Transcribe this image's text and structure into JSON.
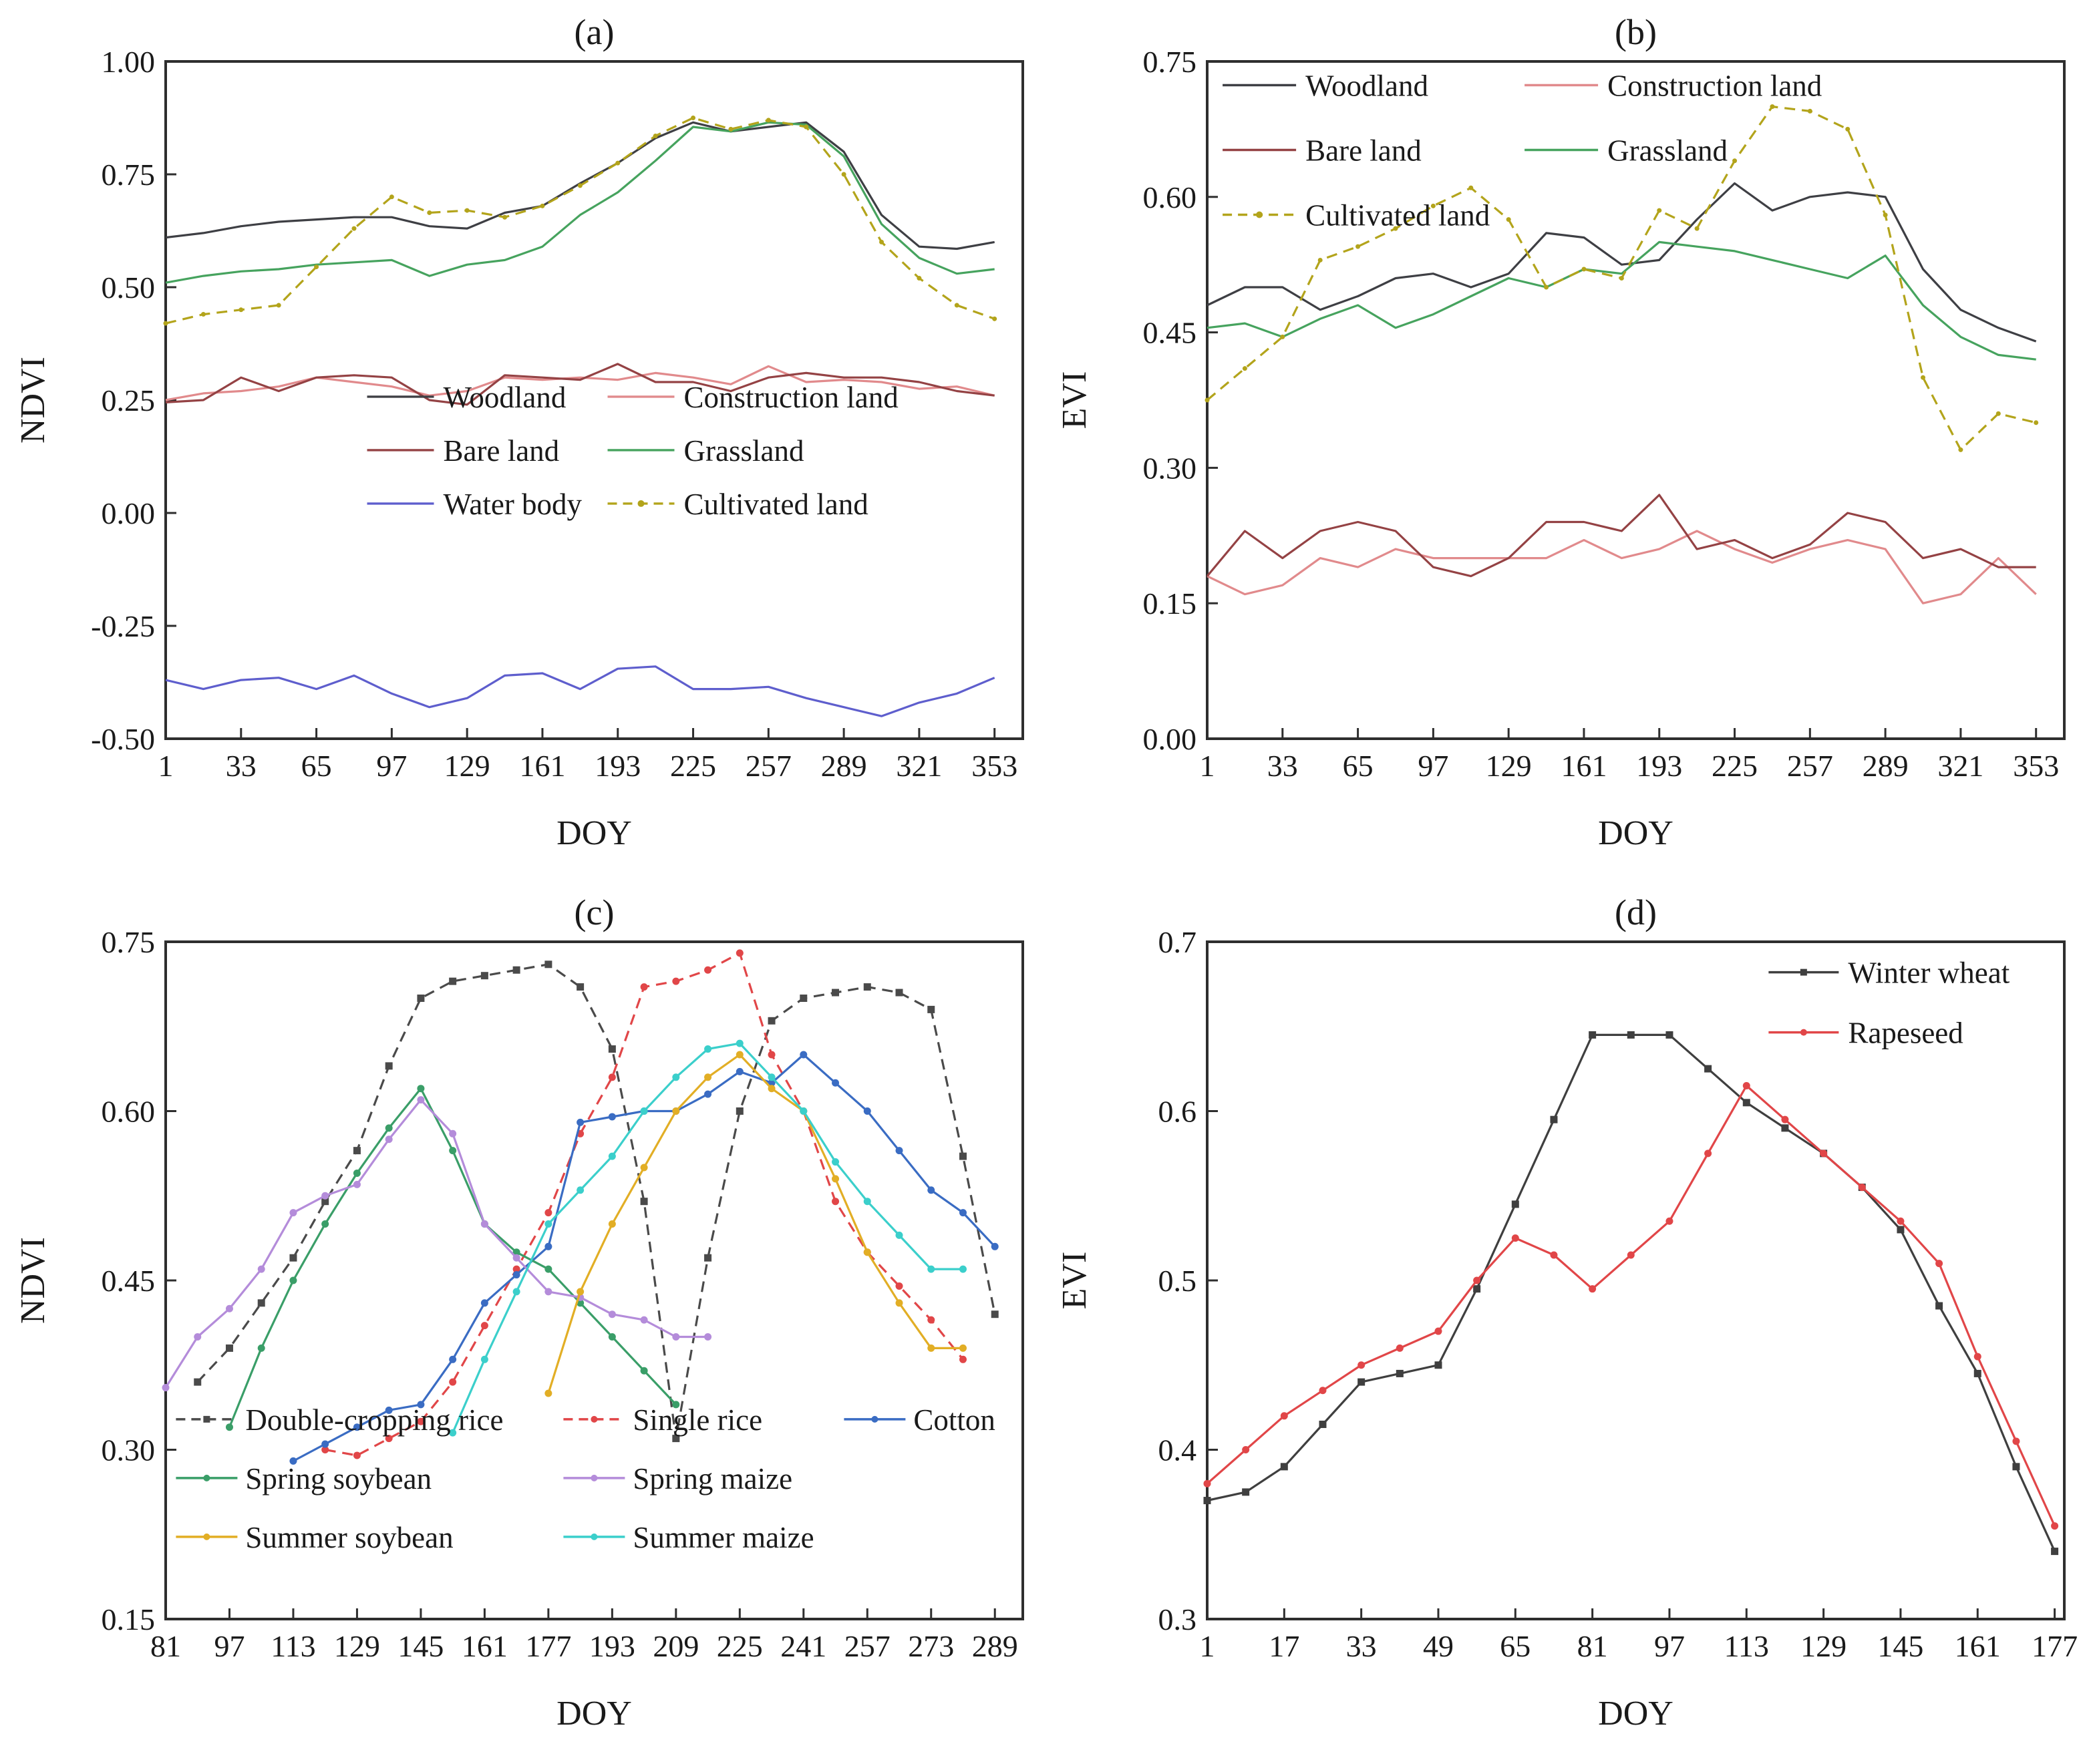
{
  "figure": {
    "background": "#ffffff",
    "axis_color": "#2e2e2e"
  },
  "chart_data": [
    {
      "type": "line",
      "title": "(a)",
      "xlabel": "DOY",
      "ylabel": "NDVI",
      "xlim": [
        1,
        365
      ],
      "ylim": [
        -0.5,
        1.0
      ],
      "grid": false,
      "legend_position": "inside-center-lower",
      "xtick_values": [
        1,
        33,
        65,
        97,
        129,
        161,
        193,
        225,
        257,
        289,
        321,
        353
      ],
      "xtick_labels": [
        "1",
        "33",
        "65",
        "97",
        "129",
        "161",
        "193",
        "225",
        "257",
        "289",
        "321",
        "353"
      ],
      "ytick_values": [
        1.0,
        0.75,
        0.5,
        0.25,
        0.0,
        -0.25,
        -0.5
      ],
      "ytick_labels": [
        "1.00",
        "0.75",
        "0.50",
        "0.25",
        "0.00",
        "-0.25",
        "-0.50"
      ],
      "x_start": 1,
      "x_step": 16,
      "series": [
        {
          "name": "Woodland",
          "color": "#3e3f44",
          "dash": null,
          "marker": null,
          "y": [
            0.61,
            0.62,
            0.635,
            0.645,
            0.65,
            0.655,
            0.655,
            0.635,
            0.63,
            0.665,
            0.68,
            0.73,
            0.775,
            0.83,
            0.865,
            0.845,
            0.855,
            0.865,
            0.8,
            0.66,
            0.59,
            0.585,
            0.6
          ]
        },
        {
          "name": "Construction land",
          "color": "#e18a8c",
          "dash": null,
          "marker": null,
          "y": [
            0.25,
            0.265,
            0.27,
            0.28,
            0.3,
            0.29,
            0.28,
            0.26,
            0.27,
            0.3,
            0.295,
            0.3,
            0.295,
            0.31,
            0.3,
            0.285,
            0.325,
            0.29,
            0.295,
            0.29,
            0.275,
            0.28,
            0.26
          ]
        },
        {
          "name": "Bare land",
          "color": "#944244",
          "dash": null,
          "marker": null,
          "y": [
            0.245,
            0.25,
            0.3,
            0.27,
            0.3,
            0.305,
            0.3,
            0.25,
            0.24,
            0.305,
            0.3,
            0.295,
            0.33,
            0.29,
            0.29,
            0.27,
            0.3,
            0.31,
            0.3,
            0.3,
            0.29,
            0.27,
            0.26
          ]
        },
        {
          "name": "Grassland",
          "color": "#46a35e",
          "dash": null,
          "marker": null,
          "y": [
            0.51,
            0.525,
            0.535,
            0.54,
            0.55,
            0.555,
            0.56,
            0.525,
            0.55,
            0.56,
            0.59,
            0.66,
            0.71,
            0.78,
            0.855,
            0.845,
            0.865,
            0.86,
            0.79,
            0.64,
            0.565,
            0.53,
            0.54
          ]
        },
        {
          "name": "Water body",
          "color": "#5e5ecd",
          "dash": null,
          "marker": null,
          "y": [
            -0.37,
            -0.39,
            -0.37,
            -0.365,
            -0.39,
            -0.36,
            -0.4,
            -0.43,
            -0.41,
            -0.36,
            -0.355,
            -0.39,
            -0.345,
            -0.34,
            -0.39,
            -0.39,
            -0.385,
            -0.41,
            -0.43,
            -0.45,
            -0.42,
            -0.4,
            -0.365
          ]
        },
        {
          "name": "Cultivated land",
          "color": "#b3a41b",
          "dash": "16 10",
          "marker": "dot",
          "y": [
            0.42,
            0.44,
            0.45,
            0.46,
            0.545,
            0.63,
            0.7,
            0.665,
            0.67,
            0.655,
            0.68,
            0.725,
            0.775,
            0.835,
            0.875,
            0.85,
            0.87,
            0.855,
            0.75,
            0.6,
            0.52,
            0.46,
            0.43
          ]
        }
      ],
      "legend_rows": [
        [
          "Woodland",
          "Construction land"
        ],
        [
          "Bare land",
          "Grassland"
        ],
        [
          "Water body",
          "Cultivated land"
        ]
      ]
    },
    {
      "type": "line",
      "title": "(b)",
      "xlabel": "DOY",
      "ylabel": "EVI",
      "xlim": [
        1,
        365
      ],
      "ylim": [
        0.0,
        0.75
      ],
      "grid": false,
      "legend_position": "inside-top-left",
      "xtick_values": [
        1,
        33,
        65,
        97,
        129,
        161,
        193,
        225,
        257,
        289,
        321,
        353
      ],
      "xtick_labels": [
        "1",
        "33",
        "65",
        "97",
        "129",
        "161",
        "193",
        "225",
        "257",
        "289",
        "321",
        "353"
      ],
      "ytick_values": [
        0.75,
        0.6,
        0.45,
        0.3,
        0.15,
        0.0
      ],
      "ytick_labels": [
        "0.75",
        "0.60",
        "0.45",
        "0.30",
        "0.15",
        "0.00"
      ],
      "x_start": 1,
      "x_step": 16,
      "series": [
        {
          "name": "Woodland",
          "color": "#3e3f44",
          "dash": null,
          "marker": null,
          "y": [
            0.48,
            0.5,
            0.5,
            0.475,
            0.49,
            0.51,
            0.515,
            0.5,
            0.515,
            0.56,
            0.555,
            0.525,
            0.53,
            0.575,
            0.615,
            0.585,
            0.6,
            0.605,
            0.6,
            0.52,
            0.475,
            0.455,
            0.44
          ]
        },
        {
          "name": "Construction land",
          "color": "#e18a8c",
          "dash": null,
          "marker": null,
          "y": [
            0.18,
            0.16,
            0.17,
            0.2,
            0.19,
            0.21,
            0.2,
            0.2,
            0.2,
            0.2,
            0.22,
            0.2,
            0.21,
            0.23,
            0.21,
            0.195,
            0.21,
            0.22,
            0.21,
            0.15,
            0.16,
            0.2,
            0.16
          ]
        },
        {
          "name": "Bare land",
          "color": "#944244",
          "dash": null,
          "marker": null,
          "y": [
            0.18,
            0.23,
            0.2,
            0.23,
            0.24,
            0.23,
            0.19,
            0.18,
            0.2,
            0.24,
            0.24,
            0.23,
            0.27,
            0.21,
            0.22,
            0.2,
            0.215,
            0.25,
            0.24,
            0.2,
            0.21,
            0.19,
            0.19
          ]
        },
        {
          "name": "Grassland",
          "color": "#46a35e",
          "dash": null,
          "marker": null,
          "y": [
            0.455,
            0.46,
            0.445,
            0.465,
            0.48,
            0.455,
            0.47,
            0.49,
            0.51,
            0.5,
            0.52,
            0.515,
            0.55,
            0.545,
            0.54,
            0.53,
            0.52,
            0.51,
            0.535,
            0.48,
            0.445,
            0.425,
            0.42
          ]
        },
        {
          "name": "Cultivated land",
          "color": "#b3a41b",
          "dash": "16 10",
          "marker": "dot",
          "y": [
            0.375,
            0.41,
            0.445,
            0.53,
            0.545,
            0.565,
            0.59,
            0.61,
            0.575,
            0.5,
            0.52,
            0.51,
            0.585,
            0.565,
            0.64,
            0.7,
            0.695,
            0.675,
            0.58,
            0.4,
            0.32,
            0.36,
            0.35
          ]
        }
      ],
      "legend_rows": [
        [
          "Woodland",
          "Construction land"
        ],
        [
          "Bare land",
          "Grassland"
        ],
        [
          "Cultivated land"
        ]
      ]
    },
    {
      "type": "line",
      "title": "(c)",
      "xlabel": "DOY",
      "ylabel": "NDVI",
      "xlim": [
        81,
        296
      ],
      "ylim": [
        0.15,
        0.75
      ],
      "grid": false,
      "legend_position": "inside-bottom-left",
      "xtick_values": [
        81,
        97,
        113,
        129,
        145,
        161,
        177,
        193,
        209,
        225,
        241,
        257,
        273,
        289
      ],
      "xtick_labels": [
        "81",
        "97",
        "113",
        "129",
        "145",
        "161",
        "177",
        "193",
        "209",
        "225",
        "241",
        "257",
        "273",
        "289"
      ],
      "ytick_values": [
        0.75,
        0.6,
        0.45,
        0.3,
        0.15
      ],
      "ytick_labels": [
        "0.75",
        "0.60",
        "0.45",
        "0.30",
        "0.15"
      ],
      "series": [
        {
          "name": "Double-cropping rice",
          "color": "#4a4a4a",
          "dash": "16 10",
          "marker": "square",
          "x": [
            89,
            97,
            105,
            113,
            121,
            129,
            137,
            145,
            153,
            161,
            169,
            177,
            185,
            193,
            201,
            209,
            217,
            225,
            233,
            241,
            249,
            257,
            265,
            273,
            281,
            289
          ],
          "y": [
            0.36,
            0.39,
            0.43,
            0.47,
            0.52,
            0.565,
            0.64,
            0.7,
            0.715,
            0.72,
            0.725,
            0.73,
            0.71,
            0.655,
            0.52,
            0.31,
            0.47,
            0.6,
            0.68,
            0.7,
            0.705,
            0.71,
            0.705,
            0.69,
            0.56,
            0.42
          ]
        },
        {
          "name": "Single rice",
          "color": "#e14648",
          "dash": "16 10",
          "marker": "dot",
          "x": [
            121,
            129,
            137,
            145,
            153,
            161,
            169,
            177,
            185,
            193,
            201,
            209,
            217,
            225,
            233,
            241,
            249,
            257,
            265,
            273,
            281
          ],
          "y": [
            0.3,
            0.295,
            0.31,
            0.325,
            0.36,
            0.41,
            0.46,
            0.51,
            0.58,
            0.63,
            0.71,
            0.715,
            0.725,
            0.74,
            0.65,
            0.6,
            0.52,
            0.475,
            0.445,
            0.415,
            0.38
          ]
        },
        {
          "name": "Cotton",
          "color": "#3a6cc3",
          "dash": null,
          "marker": "dot",
          "x": [
            113,
            121,
            129,
            137,
            145,
            153,
            161,
            169,
            177,
            185,
            193,
            201,
            209,
            217,
            225,
            233,
            241,
            249,
            257,
            265,
            273,
            281,
            289
          ],
          "y": [
            0.29,
            0.305,
            0.32,
            0.335,
            0.34,
            0.38,
            0.43,
            0.455,
            0.48,
            0.59,
            0.595,
            0.6,
            0.6,
            0.615,
            0.635,
            0.625,
            0.65,
            0.625,
            0.6,
            0.565,
            0.53,
            0.51,
            0.48
          ]
        },
        {
          "name": "Spring soybean",
          "color": "#3a9e68",
          "dash": null,
          "marker": "dot",
          "x": [
            97,
            105,
            113,
            121,
            129,
            137,
            145,
            153,
            161,
            169,
            177,
            185,
            193,
            201,
            209
          ],
          "y": [
            0.32,
            0.39,
            0.45,
            0.5,
            0.545,
            0.585,
            0.62,
            0.565,
            0.5,
            0.475,
            0.46,
            0.43,
            0.4,
            0.37,
            0.34
          ]
        },
        {
          "name": "Spring maize",
          "color": "#b48cda",
          "dash": null,
          "marker": "dot",
          "x": [
            81,
            89,
            97,
            105,
            113,
            121,
            129,
            137,
            145,
            153,
            161,
            169,
            177,
            185,
            193,
            201,
            209,
            217
          ],
          "y": [
            0.355,
            0.4,
            0.425,
            0.46,
            0.51,
            0.525,
            0.535,
            0.575,
            0.61,
            0.58,
            0.5,
            0.47,
            0.44,
            0.435,
            0.42,
            0.415,
            0.4,
            0.4
          ]
        },
        {
          "name": "Summer soybean",
          "color": "#e2ae25",
          "dash": null,
          "marker": "dot",
          "x": [
            177,
            185,
            193,
            201,
            209,
            217,
            225,
            233,
            241,
            249,
            257,
            265,
            273,
            281
          ],
          "y": [
            0.35,
            0.44,
            0.5,
            0.55,
            0.6,
            0.63,
            0.65,
            0.62,
            0.6,
            0.54,
            0.475,
            0.43,
            0.39,
            0.39
          ]
        },
        {
          "name": "Summer maize",
          "color": "#3bcfcb",
          "dash": null,
          "marker": "dot",
          "x": [
            153,
            161,
            169,
            177,
            185,
            193,
            201,
            209,
            217,
            225,
            233,
            241,
            249,
            257,
            265,
            273,
            281
          ],
          "y": [
            0.315,
            0.38,
            0.44,
            0.5,
            0.53,
            0.56,
            0.6,
            0.63,
            0.655,
            0.66,
            0.63,
            0.6,
            0.555,
            0.52,
            0.49,
            0.46,
            0.46
          ]
        }
      ],
      "legend_rows": [
        [
          "Double-cropping rice",
          "Single rice",
          "Cotton"
        ],
        [
          "Spring soybean",
          "Spring maize"
        ],
        [
          "Summer soybean",
          "Summer maize"
        ]
      ]
    },
    {
      "type": "line",
      "title": "(d)",
      "xlabel": "DOY",
      "ylabel": "EVI",
      "xlim": [
        1,
        179
      ],
      "ylim": [
        0.3,
        0.7
      ],
      "grid": false,
      "legend_position": "inside-top-right",
      "xtick_values": [
        1,
        17,
        33,
        49,
        65,
        81,
        97,
        113,
        129,
        145,
        161,
        177
      ],
      "xtick_labels": [
        "1",
        "17",
        "33",
        "49",
        "65",
        "81",
        "97",
        "113",
        "129",
        "145",
        "161",
        "177"
      ],
      "ytick_values": [
        0.7,
        0.6,
        0.5,
        0.4,
        0.3
      ],
      "ytick_labels": [
        "0.7",
        "0.6",
        "0.5",
        "0.4",
        "0.3"
      ],
      "x_start": 1,
      "x_step": 8,
      "series": [
        {
          "name": "Winter wheat",
          "color": "#3f3f3f",
          "dash": null,
          "marker": "square",
          "y": [
            0.37,
            0.375,
            0.39,
            0.415,
            0.44,
            0.445,
            0.45,
            0.495,
            0.545,
            0.595,
            0.645,
            0.645,
            0.645,
            0.625,
            0.605,
            0.59,
            0.575,
            0.555,
            0.53,
            0.485,
            0.445,
            0.39,
            0.34
          ]
        },
        {
          "name": "Rapeseed",
          "color": "#e14648",
          "dash": null,
          "marker": "dot",
          "y": [
            0.38,
            0.4,
            0.42,
            0.435,
            0.45,
            0.46,
            0.47,
            0.5,
            0.525,
            0.515,
            0.495,
            0.515,
            0.535,
            0.575,
            0.615,
            0.595,
            0.575,
            0.555,
            0.535,
            0.51,
            0.455,
            0.405,
            0.355
          ]
        }
      ],
      "legend_rows": [
        [
          "Winter wheat"
        ],
        [
          "Rapeseed"
        ]
      ]
    }
  ]
}
